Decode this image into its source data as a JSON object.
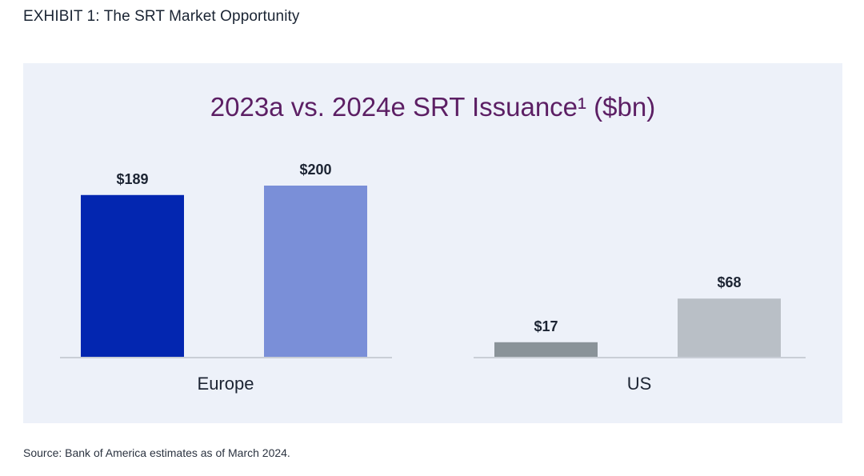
{
  "exhibit_title": "EXHIBIT 1: The SRT Market Opportunity",
  "source": "Source: Bank of America estimates as of March 2024.",
  "colors": {
    "europe_2023": "#0326b0",
    "europe_2024": "#7a8fd8",
    "us_2023": "#8a9399",
    "us_2024": "#b9bfc6",
    "axis": "#c9ced6",
    "label": "#1c2433",
    "title": "#5c1f64",
    "panel_bg": "#edf1f9"
  },
  "chart_data": {
    "type": "bar",
    "title": "2023a vs. 2024e SRT Issuance¹ ($bn)",
    "groups": [
      {
        "category": "Europe",
        "bars": [
          {
            "period": "2023a",
            "value": 189,
            "label": "$189",
            "color_key": "europe_2023"
          },
          {
            "period": "2024e",
            "value": 200,
            "label": "$200",
            "color_key": "europe_2024"
          }
        ]
      },
      {
        "category": "US",
        "bars": [
          {
            "period": "2023a",
            "value": 17,
            "label": "$17",
            "color_key": "us_2023"
          },
          {
            "period": "2024e",
            "value": 68,
            "label": "$68",
            "color_key": "us_2024"
          }
        ]
      }
    ],
    "ylim": [
      0,
      200
    ],
    "grid": false,
    "legend": "none"
  }
}
